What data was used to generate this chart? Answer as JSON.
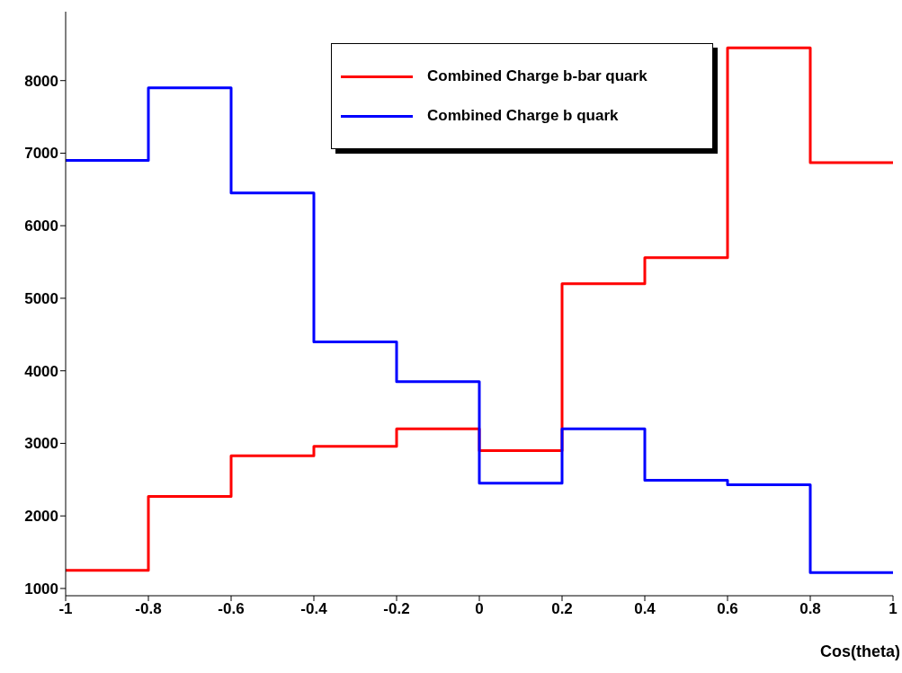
{
  "chart_data": {
    "type": "histogram",
    "xlabel": "Cos(theta)",
    "bins": [
      -1,
      -0.8,
      -0.6,
      -0.4,
      -0.2,
      0,
      0.2,
      0.4,
      0.6,
      0.8,
      1
    ],
    "series": [
      {
        "name": "Combined Charge b-bar quark",
        "color": "#ff0000",
        "values": [
          1250,
          2270,
          2830,
          2960,
          3200,
          2900,
          5200,
          5560,
          8450,
          6870
        ]
      },
      {
        "name": "Combined Charge b quark",
        "color": "#0000ff",
        "values": [
          6900,
          7900,
          6450,
          4400,
          3850,
          2450,
          3200,
          2490,
          2430,
          1220
        ]
      }
    ],
    "xlim": [
      -1,
      1
    ],
    "xticks": [
      -1,
      -0.8,
      -0.6,
      -0.4,
      -0.2,
      0,
      0.2,
      0.4,
      0.6,
      0.8,
      1
    ],
    "ylim": [
      900,
      8950
    ],
    "yticks": [
      1000,
      2000,
      3000,
      4000,
      5000,
      6000,
      7000,
      8000
    ],
    "legend": "top right"
  }
}
